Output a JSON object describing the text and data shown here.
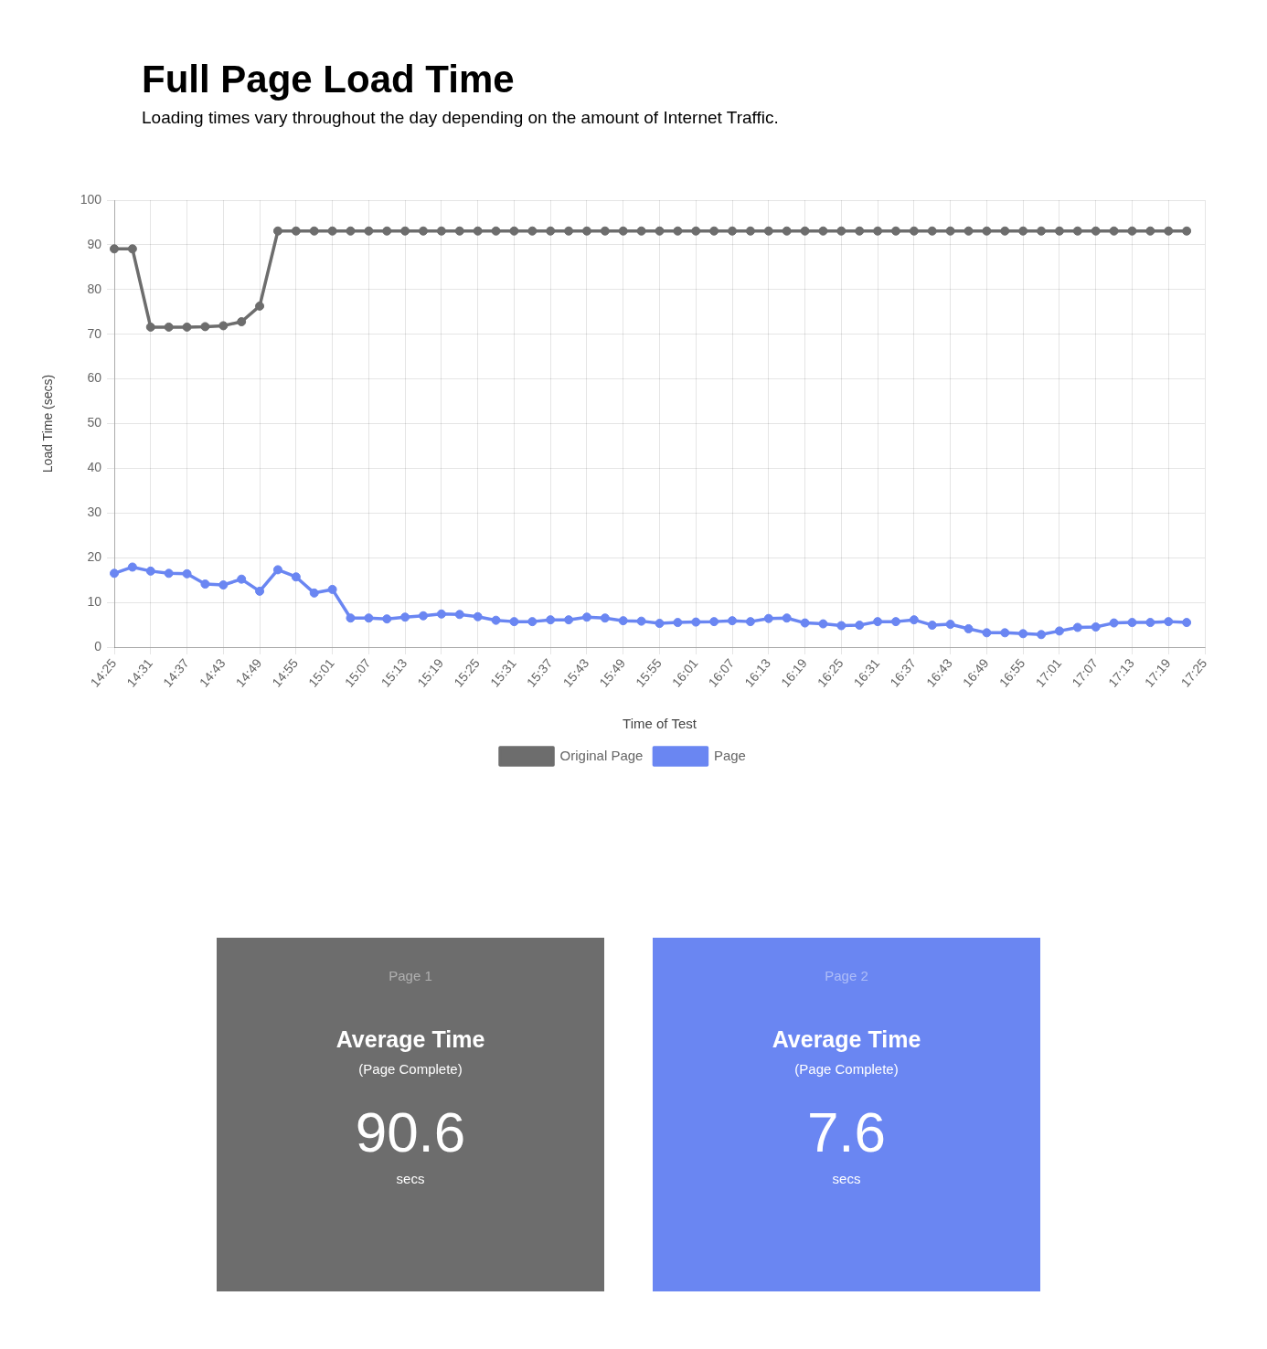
{
  "chart_data": [
    {
      "type": "line",
      "title": "Full Page Load Time",
      "subtitle": "Loading times vary throughout the day depending on the amount of Internet Traffic.",
      "xlabel": "Time of Test",
      "ylabel": "Load Time (secs)",
      "categories": [
        "14:25",
        null,
        "14:31",
        null,
        "14:37",
        null,
        "14:43",
        null,
        "14:49",
        null,
        "14:55",
        null,
        "15:01",
        null,
        "15:07",
        null,
        "15:13",
        null,
        "15:19",
        null,
        "15:25",
        null,
        "15:31",
        null,
        "15:37",
        null,
        "15:43",
        null,
        "15:49",
        null,
        "15:55",
        null,
        "16:01",
        null,
        "16:07",
        null,
        "16:13",
        null,
        "16:19",
        null,
        "16:25",
        null,
        "16:31",
        null,
        "16:37",
        null,
        "16:43",
        null,
        "16:49",
        null,
        "16:55",
        null,
        "17:01",
        null,
        "17:07",
        null,
        "17:13",
        null,
        "17:19",
        null,
        "17:25"
      ],
      "series": [
        {
          "name": "Original Page",
          "color": "#6d6d6d",
          "values": [
            89.1,
            89.1,
            71.6,
            71.6,
            71.6,
            71.7,
            71.9,
            72.8,
            76.3,
            93.1,
            93.1,
            93.1,
            93.1,
            93.1,
            93.1,
            93.1,
            93.1,
            93.1,
            93.1,
            93.1,
            93.1,
            93.1,
            93.1,
            93.1,
            93.1,
            93.1,
            93.1,
            93.1,
            93.1,
            93.1,
            93.1,
            93.1,
            93.1,
            93.1,
            93.1,
            93.1,
            93.1,
            93.1,
            93.1,
            93.1,
            93.1,
            93.1,
            93.1,
            93.1,
            93.1,
            93.1,
            93.1,
            93.1,
            93.1,
            93.1,
            93.1,
            93.1,
            93.1,
            93.1,
            93.1,
            93.1,
            93.1,
            93.1,
            93.1,
            93.1,
            null
          ]
        },
        {
          "name": "Page",
          "color": "#6a86f2",
          "values": [
            16.5,
            17.9,
            17.0,
            16.5,
            16.4,
            14.1,
            13.9,
            15.2,
            12.5,
            17.3,
            15.7,
            12.1,
            12.9,
            6.5,
            6.5,
            6.3,
            6.7,
            7.0,
            7.4,
            7.3,
            6.8,
            6.0,
            5.7,
            5.7,
            6.1,
            6.1,
            6.7,
            6.5,
            5.9,
            5.8,
            5.3,
            5.5,
            5.6,
            5.7,
            5.9,
            5.7,
            6.4,
            6.5,
            5.4,
            5.2,
            4.8,
            4.9,
            5.7,
            5.7,
            6.1,
            4.9,
            5.1,
            4.1,
            3.2,
            3.2,
            3.0,
            2.8,
            3.6,
            4.4,
            4.5,
            5.4,
            5.5,
            5.5,
            5.7,
            5.5,
            null
          ]
        }
      ],
      "ylim": [
        0,
        100
      ],
      "yticks": [
        0,
        10,
        20,
        30,
        40,
        50,
        60,
        70,
        80,
        90,
        100
      ],
      "grid": true,
      "legend": "bottom",
      "marker": "circle",
      "line_style": "solid"
    },
    {
      "type": "other",
      "title": "Average Time",
      "subtitle": "(Page Complete)",
      "annotations": [
        "Page 1",
        "90.6",
        "secs"
      ],
      "color": "#6d6d6d"
    },
    {
      "type": "other",
      "title": "Average Time",
      "subtitle": "(Page Complete)",
      "annotations": [
        "Page 2",
        "7.6",
        "secs"
      ],
      "color": "#6a86f2"
    }
  ]
}
